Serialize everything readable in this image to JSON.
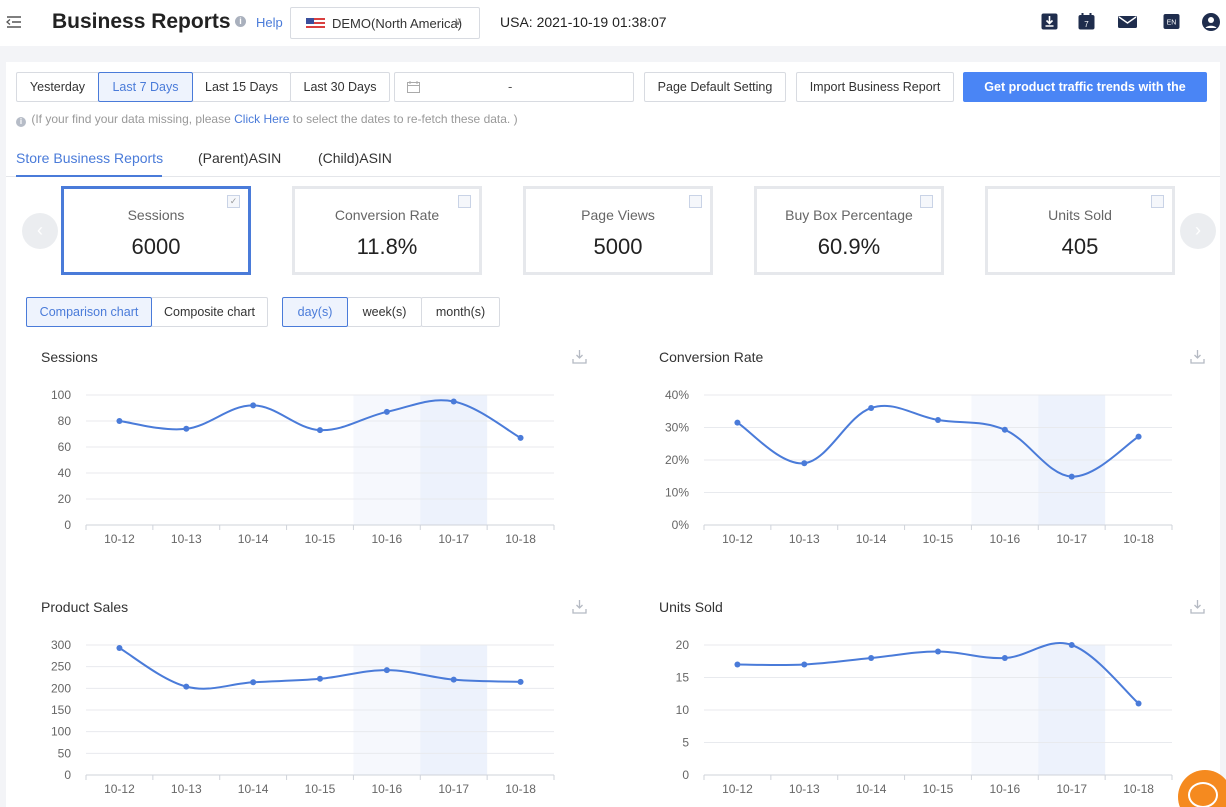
{
  "header": {
    "title": "Business Reports",
    "help": "Help",
    "store": "DEMO(North America)",
    "datetime": "USA: 2021-10-19 01:38:07",
    "icons": [
      "download-icon",
      "calendar-icon",
      "mail-icon",
      "language-icon",
      "user-icon"
    ],
    "calendar_day": "7",
    "language": "EN"
  },
  "toolbar": {
    "ranges": [
      "Yesterday",
      "Last 7 Days",
      "Last 15 Days",
      "Last 30 Days"
    ],
    "active_range": "Last 7 Days",
    "date_separator": "-",
    "page_default": "Page Default Setting",
    "import": "Import Business Report",
    "plugin": "Get product traffic trends with the plugin"
  },
  "notice": {
    "before": "(If your find your data missing, please ",
    "link": "Click Here",
    "after": " to select the dates to re-fetch these data. )"
  },
  "tabs": [
    "Store Business Reports",
    "(Parent)ASIN",
    "(Child)ASIN"
  ],
  "metrics": [
    {
      "label": "Sessions",
      "value": "6000",
      "selected": true
    },
    {
      "label": "Conversion Rate",
      "value": "11.8%",
      "selected": false
    },
    {
      "label": "Page Views",
      "value": "5000",
      "selected": false
    },
    {
      "label": "Buy Box Percentage",
      "value": "60.9%",
      "selected": false
    },
    {
      "label": "Units Sold",
      "value": "405",
      "selected": false
    }
  ],
  "chart_modes": [
    "Comparison chart",
    "Composite chart"
  ],
  "granularity": [
    "day(s)",
    "week(s)",
    "month(s)"
  ],
  "colors": {
    "accent": "#4a7bd9",
    "line": "#4a7bd9",
    "highlight": "#f0f4fc",
    "chat": "#f58a1f"
  },
  "chart_data": [
    {
      "type": "line",
      "title": "Sessions",
      "categories": [
        "10-12",
        "10-13",
        "10-14",
        "10-15",
        "10-16",
        "10-17",
        "10-18"
      ],
      "values": [
        80,
        74,
        92,
        73,
        87,
        95,
        67
      ],
      "yticks": [
        "0",
        "20",
        "40",
        "60",
        "80",
        "100"
      ],
      "ylim": [
        0,
        100
      ],
      "highlight": [
        "10-16",
        "10-17"
      ]
    },
    {
      "type": "line",
      "title": "Conversion Rate",
      "categories": [
        "10-12",
        "10-13",
        "10-14",
        "10-15",
        "10-16",
        "10-17",
        "10-18"
      ],
      "values": [
        31.5,
        19,
        36,
        32.3,
        29.3,
        14.9,
        27.2
      ],
      "yticks": [
        "0%",
        "10%",
        "20%",
        "30%",
        "40%"
      ],
      "ylim": [
        0,
        40
      ],
      "highlight": [
        "10-16",
        "10-17"
      ]
    },
    {
      "type": "line",
      "title": "Product Sales",
      "categories": [
        "10-12",
        "10-13",
        "10-14",
        "10-15",
        "10-16",
        "10-17",
        "10-18"
      ],
      "values": [
        293,
        204,
        214,
        222,
        242,
        220,
        215
      ],
      "yticks": [
        "0",
        "50",
        "100",
        "150",
        "200",
        "250",
        "300"
      ],
      "ylim": [
        0,
        300
      ],
      "highlight": [
        "10-16",
        "10-17"
      ]
    },
    {
      "type": "line",
      "title": "Units Sold",
      "categories": [
        "10-12",
        "10-13",
        "10-14",
        "10-15",
        "10-16",
        "10-17",
        "10-18"
      ],
      "values": [
        17,
        17,
        18,
        19,
        18,
        20,
        11
      ],
      "yticks": [
        "0",
        "5",
        "10",
        "15",
        "20"
      ],
      "ylim": [
        0,
        20
      ],
      "highlight": [
        "10-16",
        "10-17"
      ]
    }
  ]
}
